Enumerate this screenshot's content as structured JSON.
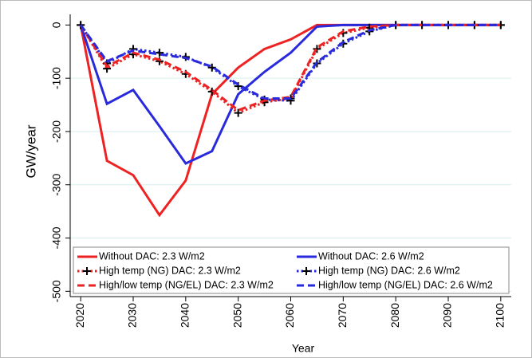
{
  "chart_data": {
    "type": "line",
    "x_label": "Year",
    "y_label": "GW/year",
    "x": [
      2020,
      2025,
      2030,
      2035,
      2040,
      2045,
      2050,
      2055,
      2060,
      2065,
      2070,
      2075,
      2080,
      2085,
      2090,
      2095,
      2100
    ],
    "series": [
      {
        "name": "Without DAC: 2.3 W/m2",
        "color": "#ee2222",
        "style": "solid",
        "values": [
          0,
          -255,
          -282,
          -357,
          -292,
          -130,
          -80,
          -45,
          -27,
          0,
          0,
          0,
          0,
          0,
          0,
          0,
          0
        ]
      },
      {
        "name": "Without DAC: 2.6 W/m2",
        "color": "#2a2add",
        "style": "solid",
        "values": [
          0,
          -148,
          -122,
          -190,
          -260,
          -237,
          -130,
          -88,
          -52,
          -3,
          0,
          0,
          0,
          0,
          0,
          0,
          0
        ]
      },
      {
        "name": "High temp (NG) DAC: 2.3 W/m2",
        "color": "#ee2222",
        "style": "dotted",
        "marker": "plus",
        "values": [
          0,
          -82,
          -55,
          -68,
          -92,
          -125,
          -165,
          -145,
          -138,
          -45,
          -15,
          -5,
          0,
          0,
          0,
          0,
          0
        ]
      },
      {
        "name": "High temp (NG) DAC: 2.6 W/m2",
        "color": "#2a2add",
        "style": "dotted",
        "marker": "plus",
        "values": [
          0,
          -72,
          -45,
          -52,
          -60,
          -80,
          -115,
          -140,
          -142,
          -72,
          -35,
          -12,
          0,
          0,
          0,
          0,
          0
        ]
      },
      {
        "name": "High/low temp (NG/EL) DAC: 2.3 W/m2",
        "color": "#ee2222",
        "style": "dashed",
        "values": [
          0,
          -78,
          -52,
          -65,
          -88,
          -122,
          -160,
          -142,
          -135,
          -42,
          -12,
          -3,
          0,
          0,
          0,
          0,
          0
        ]
      },
      {
        "name": "High/low temp (NG/EL) DAC: 2.6 W/m2",
        "color": "#2a2add",
        "style": "dashed",
        "values": [
          0,
          -68,
          -48,
          -55,
          -62,
          -78,
          -112,
          -138,
          -138,
          -70,
          -32,
          -10,
          0,
          0,
          0,
          0,
          0
        ]
      }
    ],
    "xlim": [
      2018,
      2102
    ],
    "xticks": [
      2020,
      2030,
      2040,
      2050,
      2060,
      2070,
      2080,
      2090,
      2100
    ],
    "ylim": [
      -510,
      20
    ],
    "yticks": [
      0,
      -100,
      -200,
      -300,
      -400,
      -500
    ],
    "grid": true,
    "legend": "bottom"
  }
}
